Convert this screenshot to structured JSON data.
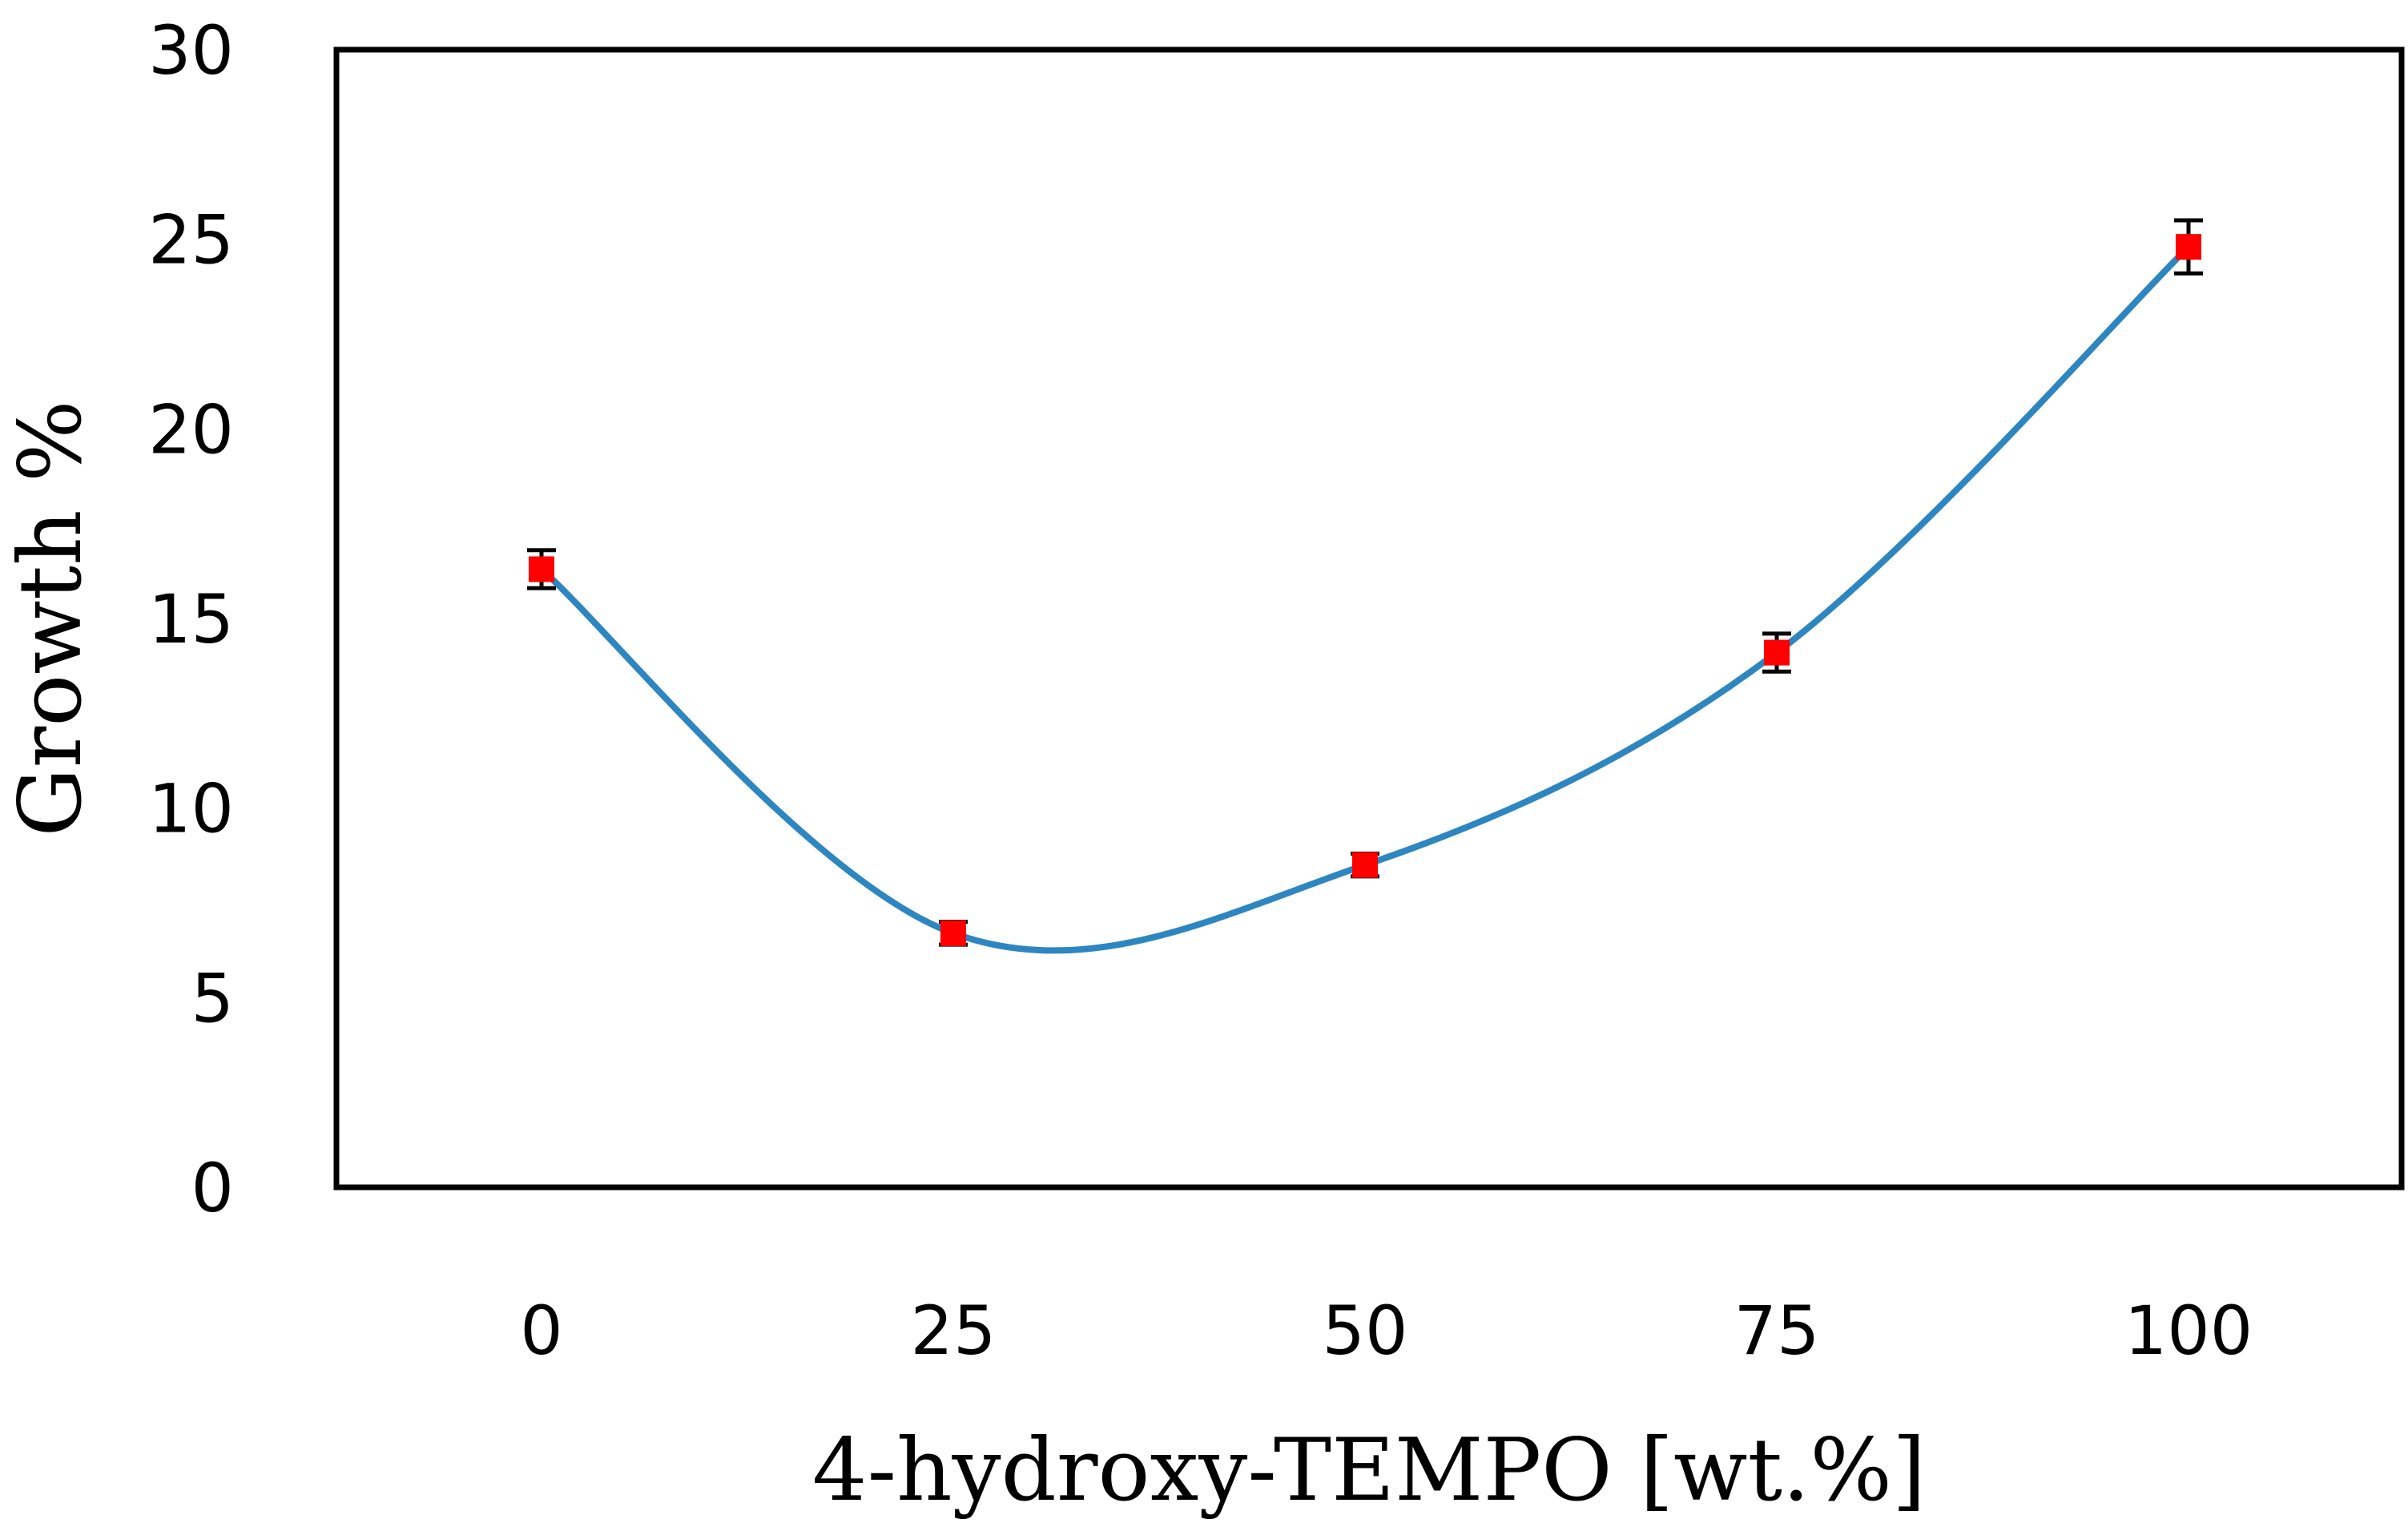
{
  "chart_data": {
    "type": "line",
    "title": "",
    "xlabel": "4-hydroxy-TEMPO [wt.%]",
    "ylabel": "Growth %",
    "categories": [
      "0",
      "25",
      "50",
      "75",
      "100"
    ],
    "series": [
      {
        "name": "Growth",
        "values": [
          16.3,
          6.7,
          8.5,
          14.1,
          24.8
        ],
        "errors": [
          0.5,
          0.3,
          0.3,
          0.5,
          0.7
        ],
        "line_color": "#2E86C1",
        "marker_color": "#FF0000"
      }
    ],
    "ylim": [
      0,
      30
    ],
    "yticks": [
      "0",
      "5",
      "10",
      "15",
      "20",
      "25",
      "30"
    ],
    "grid": false,
    "legend": "none"
  }
}
